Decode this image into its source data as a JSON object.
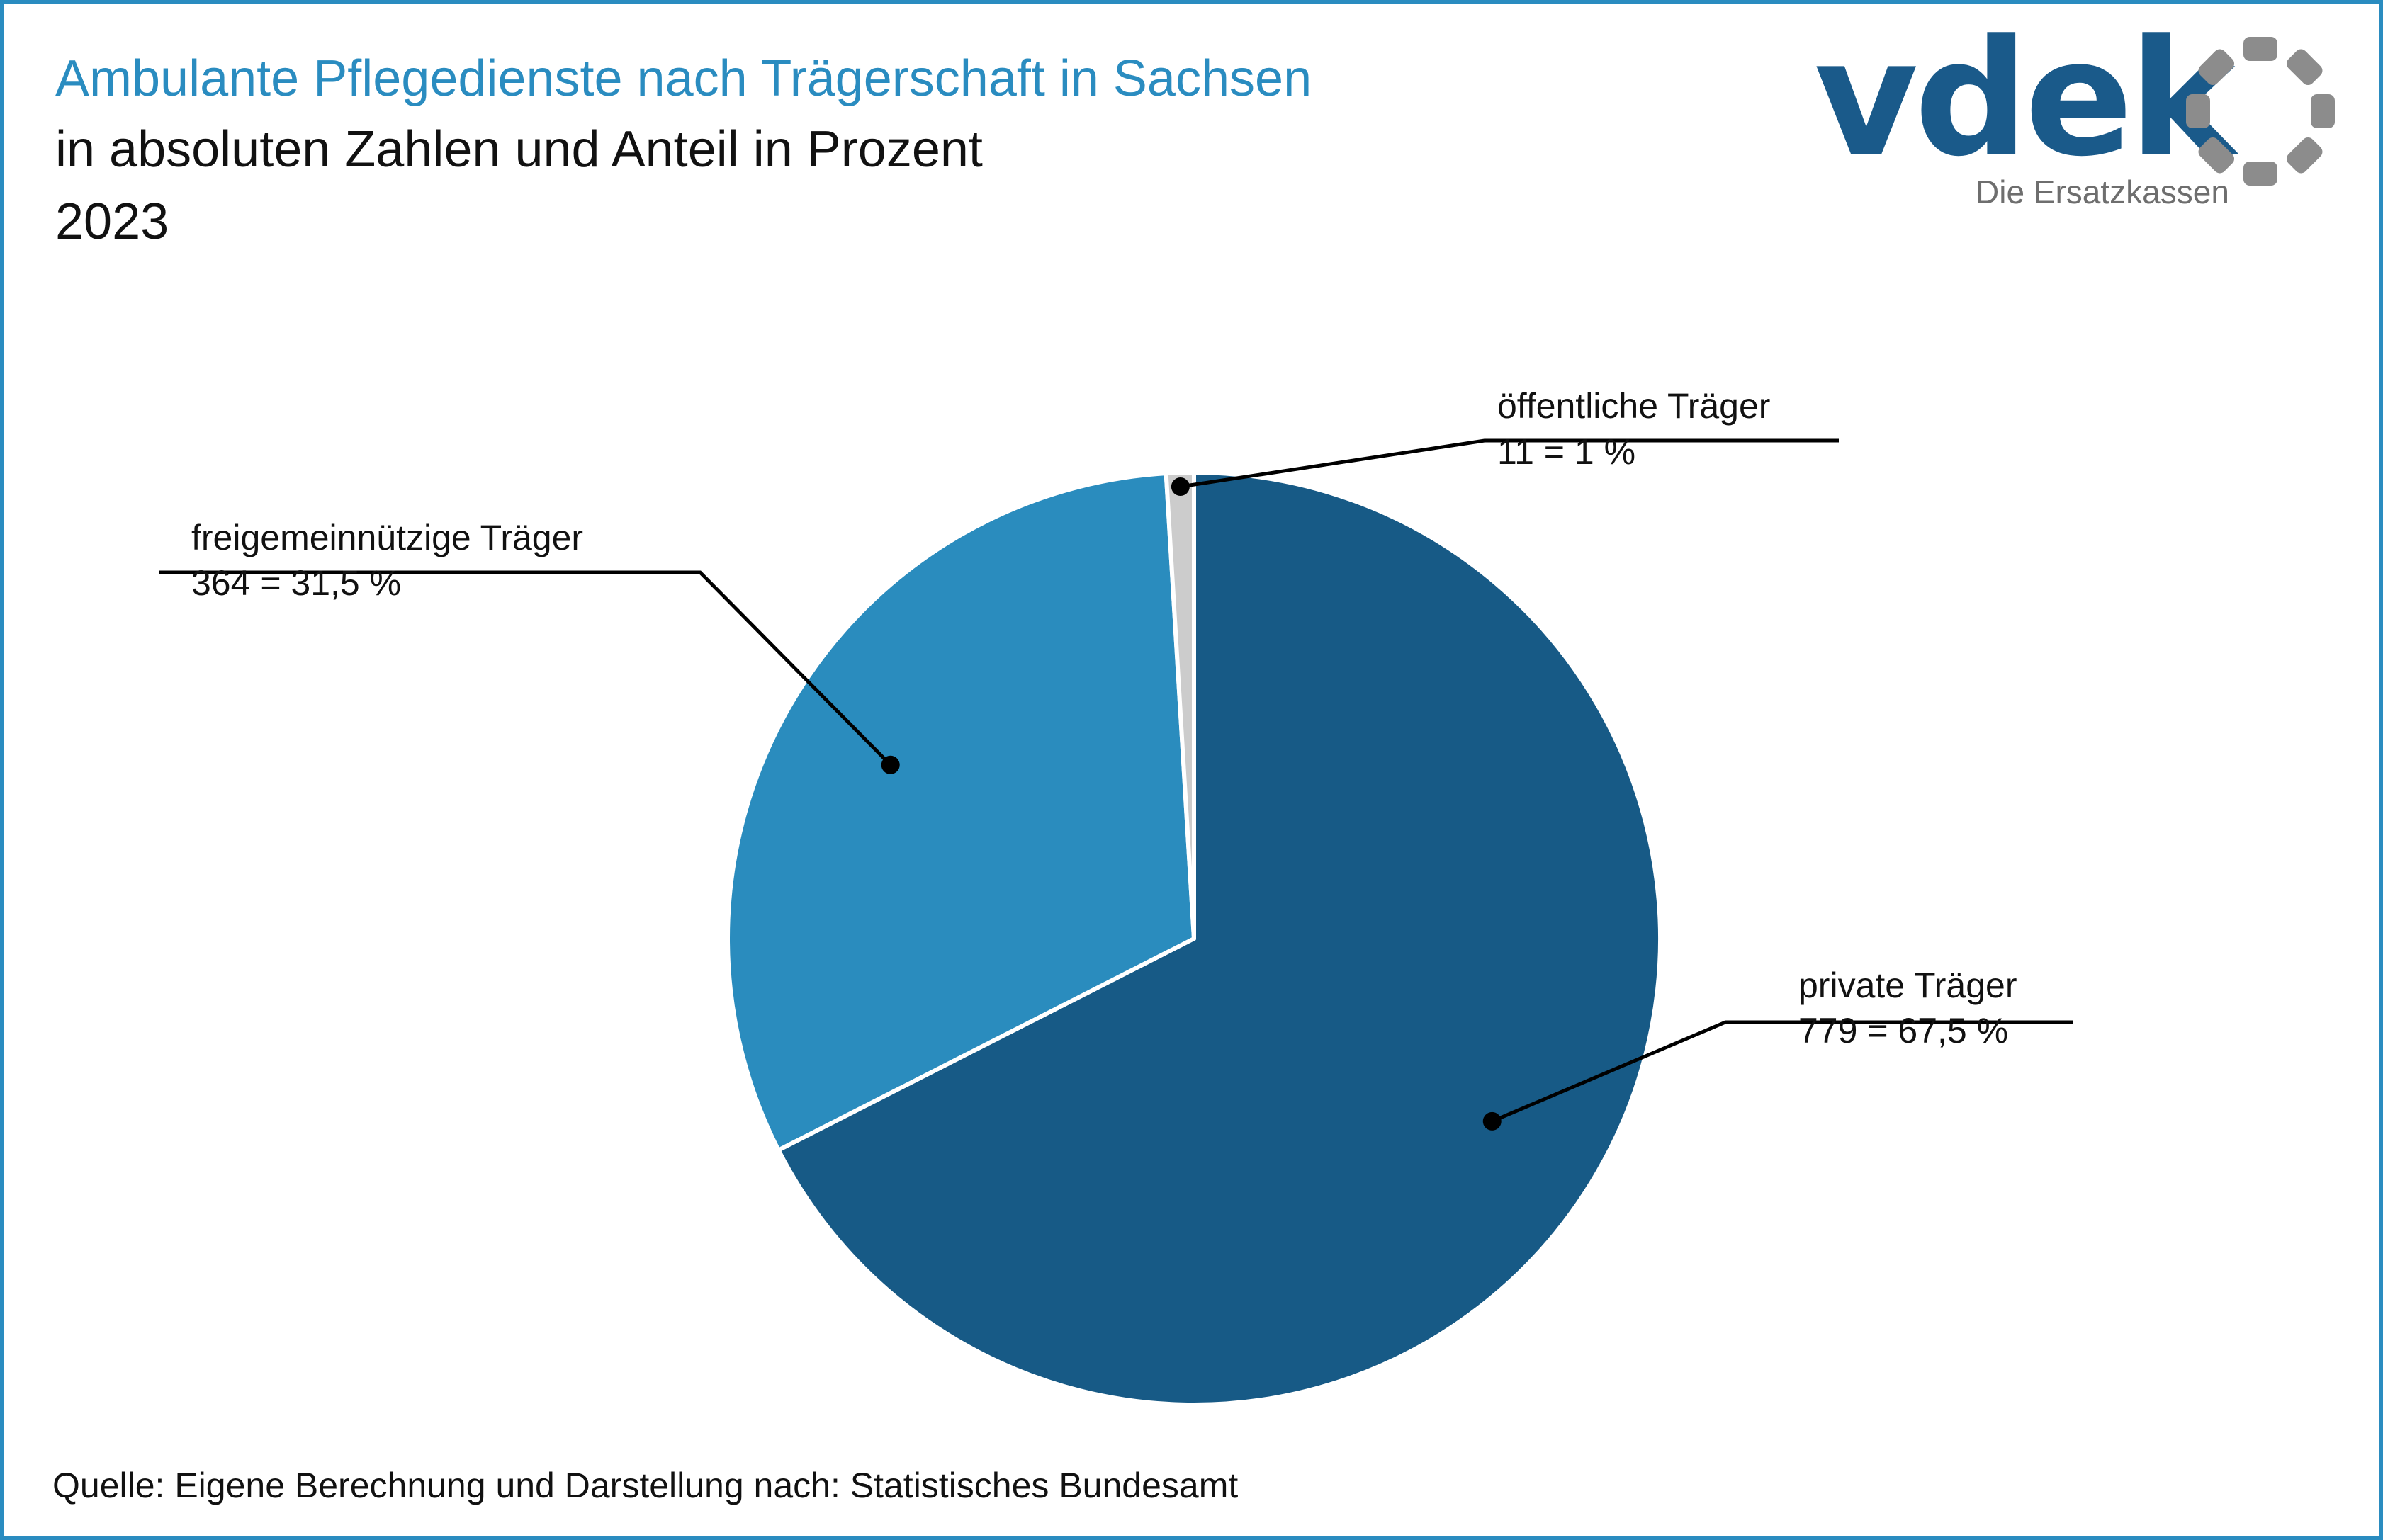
{
  "header": {
    "title": "Ambulante Pflegedienste nach Trägerschaft in Sachsen",
    "subtitle": "in absoluten Zahlen und Anteil in Prozent",
    "year": "2023"
  },
  "logo": {
    "wordmark": "vdek",
    "tagline": "Die Ersatzkassen",
    "brand_color": "#1a5a8a",
    "ring_color": "#8c8c8c"
  },
  "footer": {
    "source": "Quelle: Eigene Berechnung und Darstellung nach: Statistisches Bundesamt"
  },
  "colors": {
    "frame": "#2a8cc0",
    "title": "#2a8cc0"
  },
  "chart_data": {
    "type": "pie",
    "title": "Ambulante Pflegedienste nach Trägerschaft in Sachsen",
    "slices": [
      {
        "name": "private Träger",
        "value": 779,
        "percent": 67.5,
        "label": "779 = 67,5 %",
        "color": "#175a86"
      },
      {
        "name": "freigemeinnützige Träger",
        "value": 364,
        "percent": 31.5,
        "label": "364 = 31,5 %",
        "color": "#2a8cbe"
      },
      {
        "name": "öffentliche Träger",
        "value": 11,
        "percent": 1,
        "label": "11 = 1 %",
        "color": "#cccccc"
      }
    ]
  }
}
